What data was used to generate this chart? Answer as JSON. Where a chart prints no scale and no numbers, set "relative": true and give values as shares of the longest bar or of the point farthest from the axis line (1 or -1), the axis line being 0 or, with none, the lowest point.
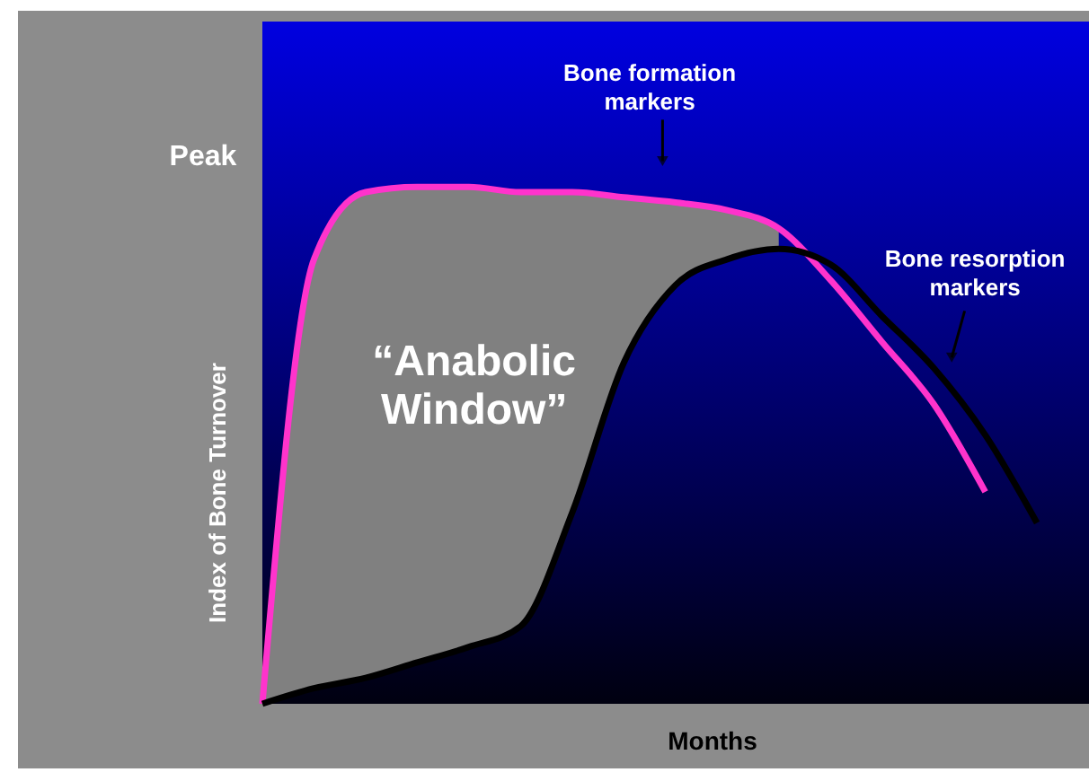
{
  "chart_data": {
    "type": "line",
    "relative": true,
    "xlabel": "Months",
    "ylabel": "Index of Bone Turnover",
    "tick_labels": false,
    "grid": false,
    "marker": "none",
    "line_style": "solid",
    "categories": [
      null,
      null,
      null,
      null,
      null,
      null,
      null,
      null,
      null,
      null,
      null,
      null,
      null,
      null,
      null,
      null
    ],
    "series": [
      {
        "color": "#ff33cc",
        "values": [
          0,
          0.86,
          0.99,
          1.0,
          1.0,
          0.99,
          0.99,
          0.98,
          0.97,
          0.955,
          0.92,
          0.82,
          0.7,
          0.58,
          0.41,
          null
        ],
        "lower": [
          0,
          0.03,
          0.05,
          0.08,
          0.11,
          0.15,
          0.37,
          0.66,
          0.81,
          0.86,
          0.88,
          null,
          null,
          null,
          null,
          null
        ],
        "upper": [
          0,
          0.86,
          0.99,
          1.0,
          1.0,
          0.99,
          0.99,
          0.98,
          0.97,
          0.955,
          0.92,
          null,
          null,
          null,
          null,
          null
        ]
      },
      {
        "color": "#000000",
        "values": [
          0,
          0.03,
          0.05,
          0.08,
          0.11,
          0.15,
          0.37,
          0.66,
          0.81,
          0.86,
          0.88,
          0.85,
          0.75,
          0.65,
          0.52,
          0.35
        ]
      }
    ],
    "annotations": [
      "Peak",
      "Bone formation\nmarkers",
      "Bone resorption\nmarkers",
      "“Anabolic\nWindow”"
    ]
  }
}
